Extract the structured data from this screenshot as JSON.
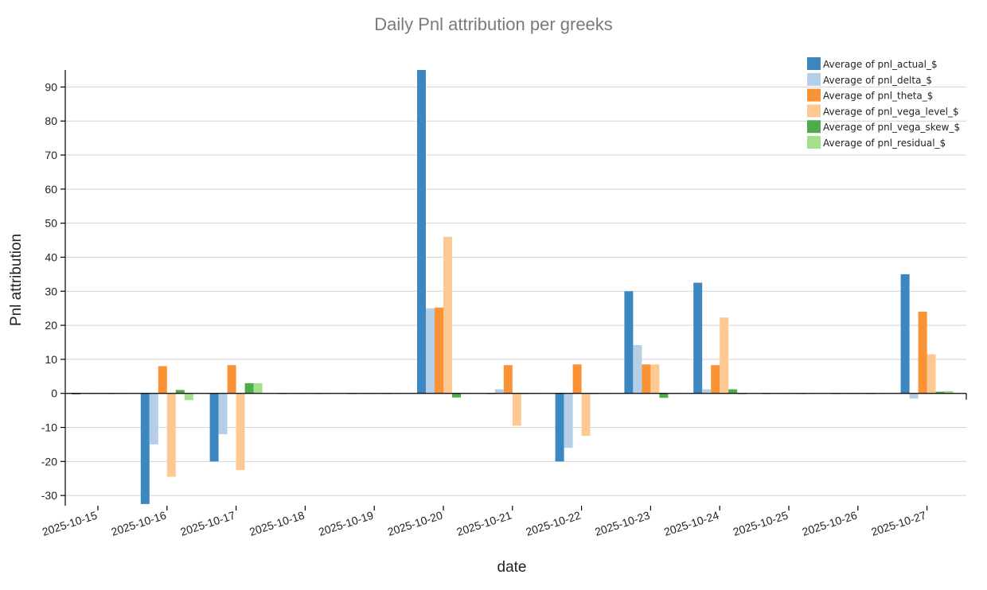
{
  "chart_data": {
    "type": "bar",
    "title": "Daily Pnl attribution per greeks",
    "xlabel": "date",
    "ylabel": "Pnl attribution",
    "ylim": [
      -33,
      95
    ],
    "yticks": [
      90,
      80,
      70,
      60,
      50,
      40,
      30,
      20,
      10,
      0,
      -10,
      -20,
      -30
    ],
    "grid": true,
    "legend_position": "top-right",
    "categories": [
      "2025-10-15",
      "2025-10-16",
      "2025-10-17",
      "2025-10-18",
      "2025-10-19",
      "2025-10-20",
      "2025-10-21",
      "2025-10-22",
      "2025-10-23",
      "2025-10-24",
      "2025-10-25",
      "2025-10-26",
      "2025-10-27"
    ],
    "series": [
      {
        "name": "Average of pnl_actual_$",
        "color": "#3d87c0",
        "values": [
          -0.3,
          -32.5,
          -20.0,
          -0.2,
          -0.2,
          95.0,
          -0.2,
          -20.0,
          30.0,
          32.5,
          -0.2,
          -0.2,
          35.0
        ]
      },
      {
        "name": "Average of pnl_delta_$",
        "color": "#b6cfe9",
        "values": [
          -0.2,
          -15.0,
          -12.0,
          -0.1,
          -0.1,
          25.0,
          1.2,
          -16.0,
          14.2,
          1.2,
          -0.1,
          -0.1,
          -1.5
        ]
      },
      {
        "name": "Average of pnl_theta_$",
        "color": "#f99335",
        "values": [
          -0.2,
          8.0,
          8.3,
          -0.2,
          -0.2,
          25.2,
          8.3,
          8.5,
          8.5,
          8.3,
          -0.2,
          -0.2,
          24.0
        ]
      },
      {
        "name": "Average of pnl_vega_level_$",
        "color": "#fdc891",
        "values": [
          -0.2,
          -24.5,
          -22.5,
          -0.2,
          -0.2,
          46.0,
          -9.5,
          -12.5,
          8.5,
          22.3,
          -0.2,
          -0.2,
          11.5
        ]
      },
      {
        "name": "Average of pnl_vega_skew_$",
        "color": "#4fac4c",
        "values": [
          -0.2,
          1.0,
          3.0,
          -0.2,
          -0.2,
          -1.2,
          -0.2,
          -0.2,
          -1.3,
          1.2,
          -0.2,
          -0.2,
          0.5
        ]
      },
      {
        "name": "Average of pnl_residual_$",
        "color": "#a5df8e",
        "values": [
          -0.1,
          -2.0,
          3.0,
          -0.1,
          -0.1,
          0.1,
          -0.1,
          -0.1,
          -0.1,
          -0.3,
          -0.1,
          -0.1,
          0.7
        ]
      }
    ]
  }
}
